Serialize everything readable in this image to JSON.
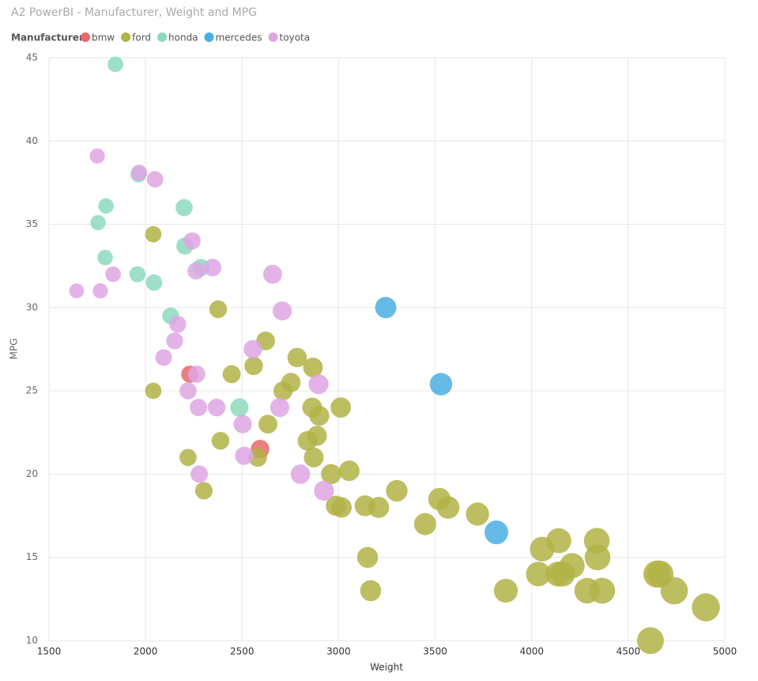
{
  "chart_data": {
    "type": "scatter",
    "title": "A2 PowerBI - Manufacturer, Weight and MPG",
    "legend_title": "Manufacturer",
    "x_label": "Weight",
    "y_label": "MPG",
    "xlim": [
      1500,
      5000
    ],
    "xticks": [
      1500,
      2000,
      2500,
      3000,
      3500,
      4000,
      4500,
      5000
    ],
    "ylim": [
      10,
      45
    ],
    "yticks": [
      10,
      15,
      20,
      25,
      30,
      35,
      40,
      45
    ],
    "grid": true,
    "legend": "top-left",
    "series": [
      {
        "name": "bmw",
        "color": "#e8686a",
        "x": [
          2229,
          2593
        ],
        "values": [
          26.0,
          21.5
        ]
      },
      {
        "name": "ford",
        "color": "#b2b347",
        "x": [
          2040,
          2376,
          2040,
          2220,
          2302,
          2388,
          2446,
          2560,
          2622,
          2634,
          2581,
          2712,
          2753,
          2785,
          2867,
          2863,
          2900,
          2888,
          2839,
          2871,
          2961,
          3055,
          2986,
          3015,
          3011,
          3137,
          3207,
          3301,
          3150,
          3166,
          3448,
          3522,
          3567,
          3719,
          3866,
          4034,
          4054,
          4140,
          4136,
          4160,
          4209,
          4287,
          4365,
          4341,
          4337,
          4615,
          4648,
          4664,
          4738,
          4902
        ],
        "values": [
          34.4,
          29.9,
          25.0,
          21.0,
          19.0,
          22.0,
          26.0,
          26.5,
          28.0,
          23.0,
          21.0,
          25.0,
          25.5,
          27.0,
          26.4,
          24.0,
          23.5,
          22.3,
          22.0,
          21.0,
          20.0,
          20.2,
          18.1,
          18.0,
          24.0,
          18.1,
          18.0,
          19.0,
          15.0,
          13.0,
          17.0,
          18.5,
          18.0,
          17.6,
          13.0,
          14.0,
          15.5,
          16.0,
          14.0,
          14.0,
          14.5,
          13.0,
          13.0,
          15.0,
          16.0,
          10.0,
          14.0,
          14.0,
          13.0,
          12.0
        ]
      },
      {
        "name": "honda",
        "color": "#8dd9bd",
        "x": [
          1844,
          1754,
          1795,
          1791,
          1963,
          1958,
          2044,
          2200,
          2204,
          2286,
          2130,
          2486
        ],
        "values": [
          44.6,
          35.1,
          36.1,
          33.0,
          38.0,
          32.0,
          31.5,
          36.0,
          33.7,
          32.4,
          29.5,
          24.0
        ]
      },
      {
        "name": "mercedes",
        "color": "#4aaee4",
        "x": [
          3244,
          3530,
          3817
        ],
        "values": [
          30.0,
          25.4,
          16.5
        ]
      },
      {
        "name": "toyota",
        "color": "#dea6e4",
        "x": [
          1750,
          1643,
          1766,
          1832,
          1967,
          2049,
          2241,
          2262,
          2347,
          2167,
          2151,
          2094,
          2265,
          2220,
          2274,
          2368,
          2278,
          2503,
          2511,
          2658,
          2708,
          2556,
          2695,
          2896,
          2802,
          2924
        ],
        "values": [
          39.1,
          31.0,
          31.0,
          32.0,
          38.1,
          37.7,
          34.0,
          32.2,
          32.4,
          29.0,
          28.0,
          27.0,
          26.0,
          25.0,
          24.0,
          24.0,
          20.0,
          23.0,
          21.1,
          32.0,
          29.8,
          27.5,
          24.0,
          25.4,
          20.0,
          19.0
        ]
      }
    ]
  }
}
